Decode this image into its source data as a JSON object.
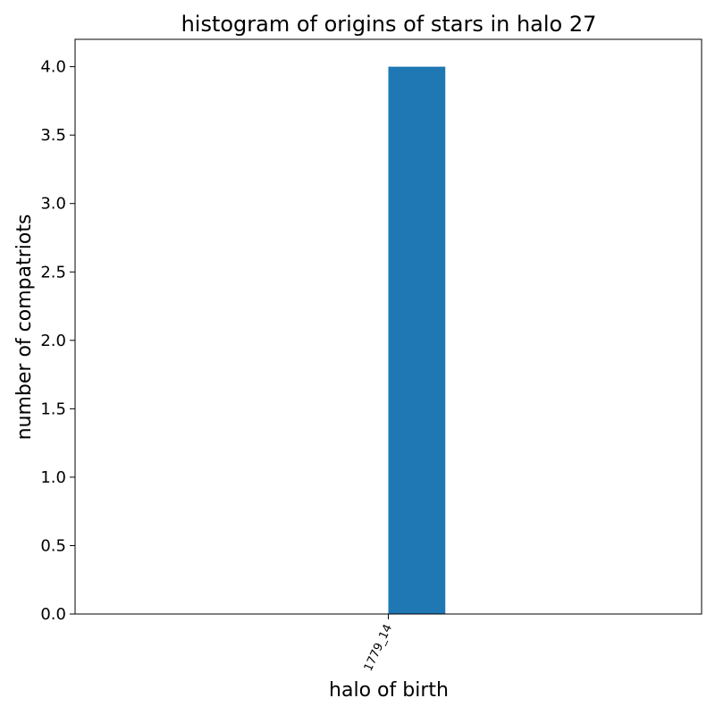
{
  "chart_data": {
    "type": "bar",
    "title": "histogram of origins of stars in halo 27",
    "xlabel": "halo of birth",
    "ylabel": "number of compatriots",
    "categories": [
      "1779_14"
    ],
    "values": [
      4.0
    ],
    "ylim": [
      0,
      4.2
    ],
    "yticks": [
      "0.0",
      "0.5",
      "1.0",
      "1.5",
      "2.0",
      "2.5",
      "3.0",
      "3.5",
      "4.0"
    ],
    "bar_color": "#1f77b4",
    "grid": false,
    "xtick_rotation_deg": 65
  }
}
